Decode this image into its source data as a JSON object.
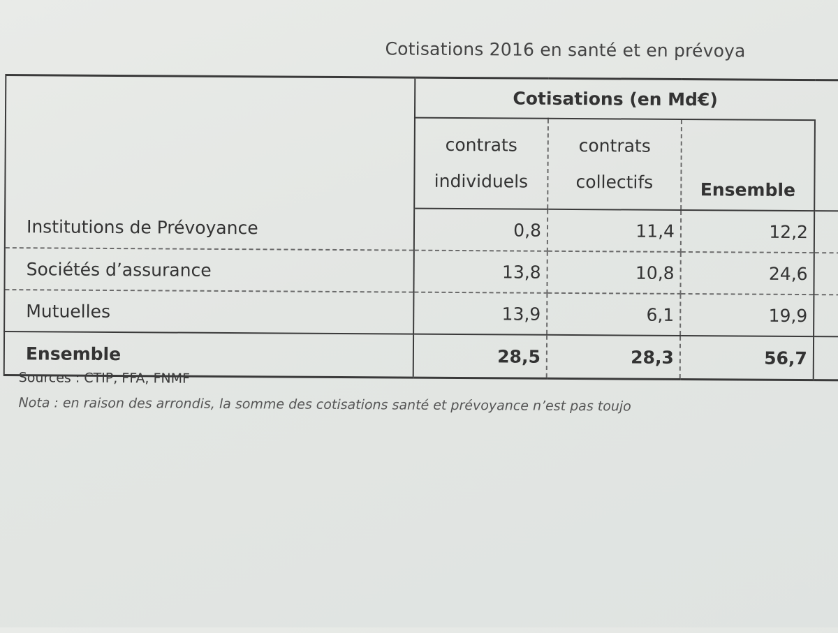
{
  "title": "Cotisations  2016 en santé et en prévoya",
  "table": {
    "group_header": "Cotisations (en Md€)",
    "col_individuels": [
      "contrats",
      "individuels"
    ],
    "col_collectifs": [
      "contrats",
      "collectifs"
    ],
    "col_ensemble": "Ensemble",
    "rows": [
      {
        "label": "Institutions de Prévoyance",
        "individuels": "0,8",
        "collectifs": "11,4",
        "ensemble": "12,2"
      },
      {
        "label": "Sociétés d’assurance",
        "individuels": "13,8",
        "collectifs": "10,8",
        "ensemble": "24,6"
      },
      {
        "label": "Mutuelles",
        "individuels": "13,9",
        "collectifs": "6,1",
        "ensemble": "19,9"
      }
    ],
    "total": {
      "label": "Ensemble",
      "individuels": "28,5",
      "collectifs": "28,3",
      "ensemble": "56,7"
    }
  },
  "sources": "Sources : CTIP, FFA, FNMF",
  "nota": "Nota : en raison des arrondis, la somme des cotisations santé et prévoyance n’est pas toujo"
}
